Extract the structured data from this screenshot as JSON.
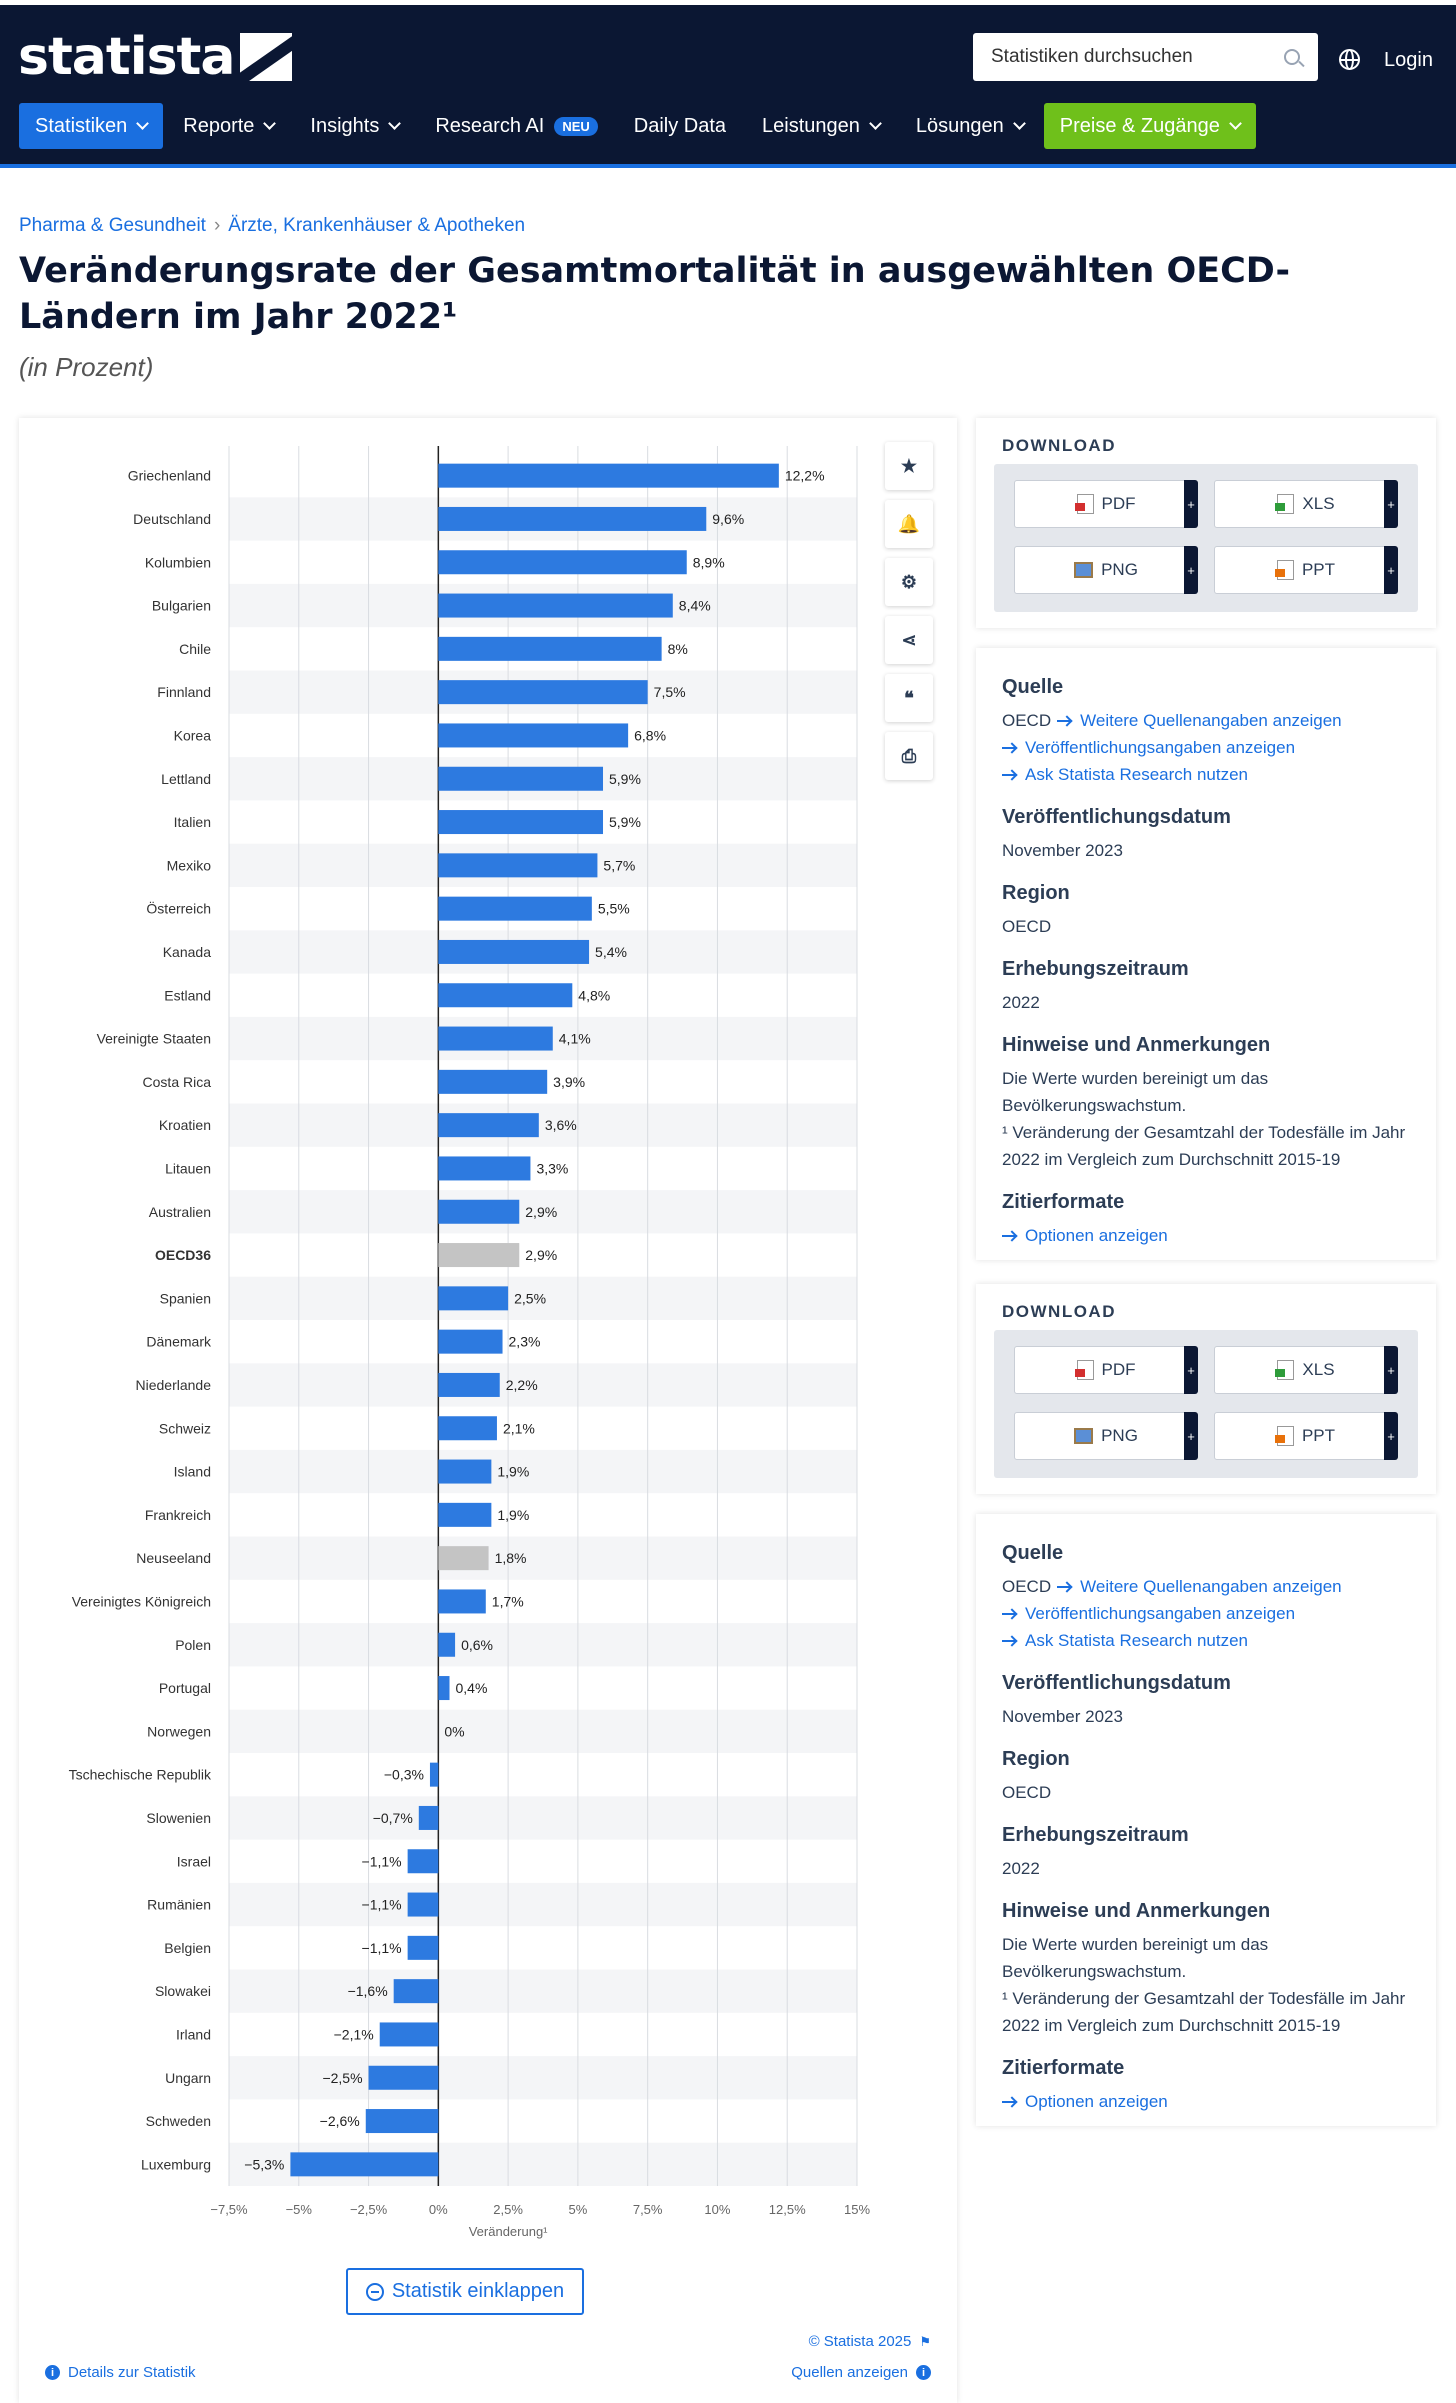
{
  "header": {
    "logo_text": "statista",
    "search_placeholder": "Statistiken durchsuchen",
    "login": "Login",
    "nav": [
      {
        "label": "Statistiken"
      },
      {
        "label": "Reporte"
      },
      {
        "label": "Insights"
      },
      {
        "label": "Research AI",
        "badge": "NEU"
      },
      {
        "label": "Daily Data"
      },
      {
        "label": "Leistungen"
      },
      {
        "label": "Lösungen"
      },
      {
        "label": "Preise & Zugänge"
      }
    ]
  },
  "breadcrumb": [
    "Pharma & Gesundheit",
    "Ärzte, Krankenhäuser & Apotheken"
  ],
  "page": {
    "title": "Veränderungsrate der Gesamtmortalität in ausgewählten OECD-Ländern im Jahr 2022¹",
    "subtitle": "(in Prozent)",
    "collapse_label": "Statistik einklappen",
    "copyright": "© Statista 2025",
    "details_label": "Details zur Statistik",
    "sources_label": "Quellen anzeigen"
  },
  "colors": {
    "bar": "#2d7ae0",
    "bar_highlight": "#c4c4c4",
    "nav_bg": "#0b1733",
    "accent": "#1a6fe0",
    "cta": "#6fc01b"
  },
  "chart_data": {
    "type": "bar",
    "orientation": "horizontal",
    "xlabel": "Veränderung¹",
    "xlim": [
      -7.5,
      15
    ],
    "xticks": [
      -7.5,
      -5,
      -2.5,
      0,
      2.5,
      5,
      7.5,
      10,
      12.5,
      15
    ],
    "xtick_labels": [
      "−7,5%",
      "−5%",
      "−2,5%",
      "0%",
      "2,5%",
      "5%",
      "7,5%",
      "10%",
      "12,5%",
      "15%"
    ],
    "grid": true,
    "categories": [
      "Griechenland",
      "Deutschland",
      "Kolumbien",
      "Bulgarien",
      "Chile",
      "Finnland",
      "Korea",
      "Lettland",
      "Italien",
      "Mexiko",
      "Österreich",
      "Kanada",
      "Estland",
      "Vereinigte Staaten",
      "Costa Rica",
      "Kroatien",
      "Litauen",
      "Australien",
      "OECD36",
      "Spanien",
      "Dänemark",
      "Niederlande",
      "Schweiz",
      "Island",
      "Frankreich",
      "Neuseeland",
      "Vereinigtes Königreich",
      "Polen",
      "Portugal",
      "Norwegen",
      "Tschechische Republik",
      "Slowenien",
      "Israel",
      "Rumänien",
      "Belgien",
      "Slowakei",
      "Irland",
      "Ungarn",
      "Schweden",
      "Luxemburg"
    ],
    "values": [
      12.2,
      9.6,
      8.9,
      8.4,
      8,
      7.5,
      6.8,
      5.9,
      5.9,
      5.7,
      5.5,
      5.4,
      4.8,
      4.1,
      3.9,
      3.6,
      3.3,
      2.9,
      2.9,
      2.5,
      2.3,
      2.2,
      2.1,
      1.9,
      1.9,
      1.8,
      1.7,
      0.6,
      0.4,
      0,
      -0.3,
      -0.7,
      -1.1,
      -1.1,
      -1.1,
      -1.6,
      -2.1,
      -2.5,
      -2.6,
      -5.3
    ],
    "value_labels": [
      "12,2%",
      "9,6%",
      "8,9%",
      "8,4%",
      "8%",
      "7,5%",
      "6,8%",
      "5,9%",
      "5,9%",
      "5,7%",
      "5,5%",
      "5,4%",
      "4,8%",
      "4,1%",
      "3,9%",
      "3,6%",
      "3,3%",
      "2,9%",
      "2,9%",
      "2,5%",
      "2,3%",
      "2,2%",
      "2,1%",
      "1,9%",
      "1,9%",
      "1,8%",
      "1,7%",
      "0,6%",
      "0,4%",
      "0%",
      "−0,3%",
      "−0,7%",
      "−1,1%",
      "−1,1%",
      "−1,1%",
      "−1,6%",
      "−2,1%",
      "−2,5%",
      "−2,6%",
      "−5,3%"
    ],
    "highlighted": [
      "OECD36",
      "Neuseeland"
    ],
    "bold_categories": [
      "OECD36"
    ]
  },
  "tools": [
    {
      "name": "favorite-star-icon",
      "glyph": "★"
    },
    {
      "name": "notification-bell-icon",
      "glyph": "🔔"
    },
    {
      "name": "settings-gear-icon",
      "glyph": "⚙"
    },
    {
      "name": "share-icon",
      "glyph": "⋖"
    },
    {
      "name": "cite-quote-icon",
      "glyph": "❝"
    },
    {
      "name": "print-icon",
      "glyph": "⎙"
    }
  ],
  "download": {
    "title": "DOWNLOAD",
    "buttons": [
      {
        "label": "PDF",
        "icon": "pdf"
      },
      {
        "label": "XLS",
        "icon": "xls"
      },
      {
        "label": "PNG",
        "icon": "png"
      },
      {
        "label": "PPT",
        "icon": "ppt"
      }
    ]
  },
  "info": {
    "source_h": "Quelle",
    "source": "OECD",
    "more_sources": "Weitere Quellenangaben anzeigen",
    "publication_link": "Veröffentlichungsangaben anzeigen",
    "ask_research": "Ask Statista Research nutzen",
    "pub_date_h": "Veröffentlichungsdatum",
    "pub_date": "November 2023",
    "region_h": "Region",
    "region": "OECD",
    "period_h": "Erhebungszeitraum",
    "period": "2022",
    "notes_h": "Hinweise und Anmerkungen",
    "notes_1": "Die Werte wurden bereinigt um das Bevölkerungswachstum.",
    "notes_2": "¹ Veränderung der Gesamtzahl der Todesfälle im Jahr 2022 im Vergleich zum Durchschnitt 2015-19",
    "cite_h": "Zitierformate",
    "cite_link": "Optionen anzeigen"
  }
}
